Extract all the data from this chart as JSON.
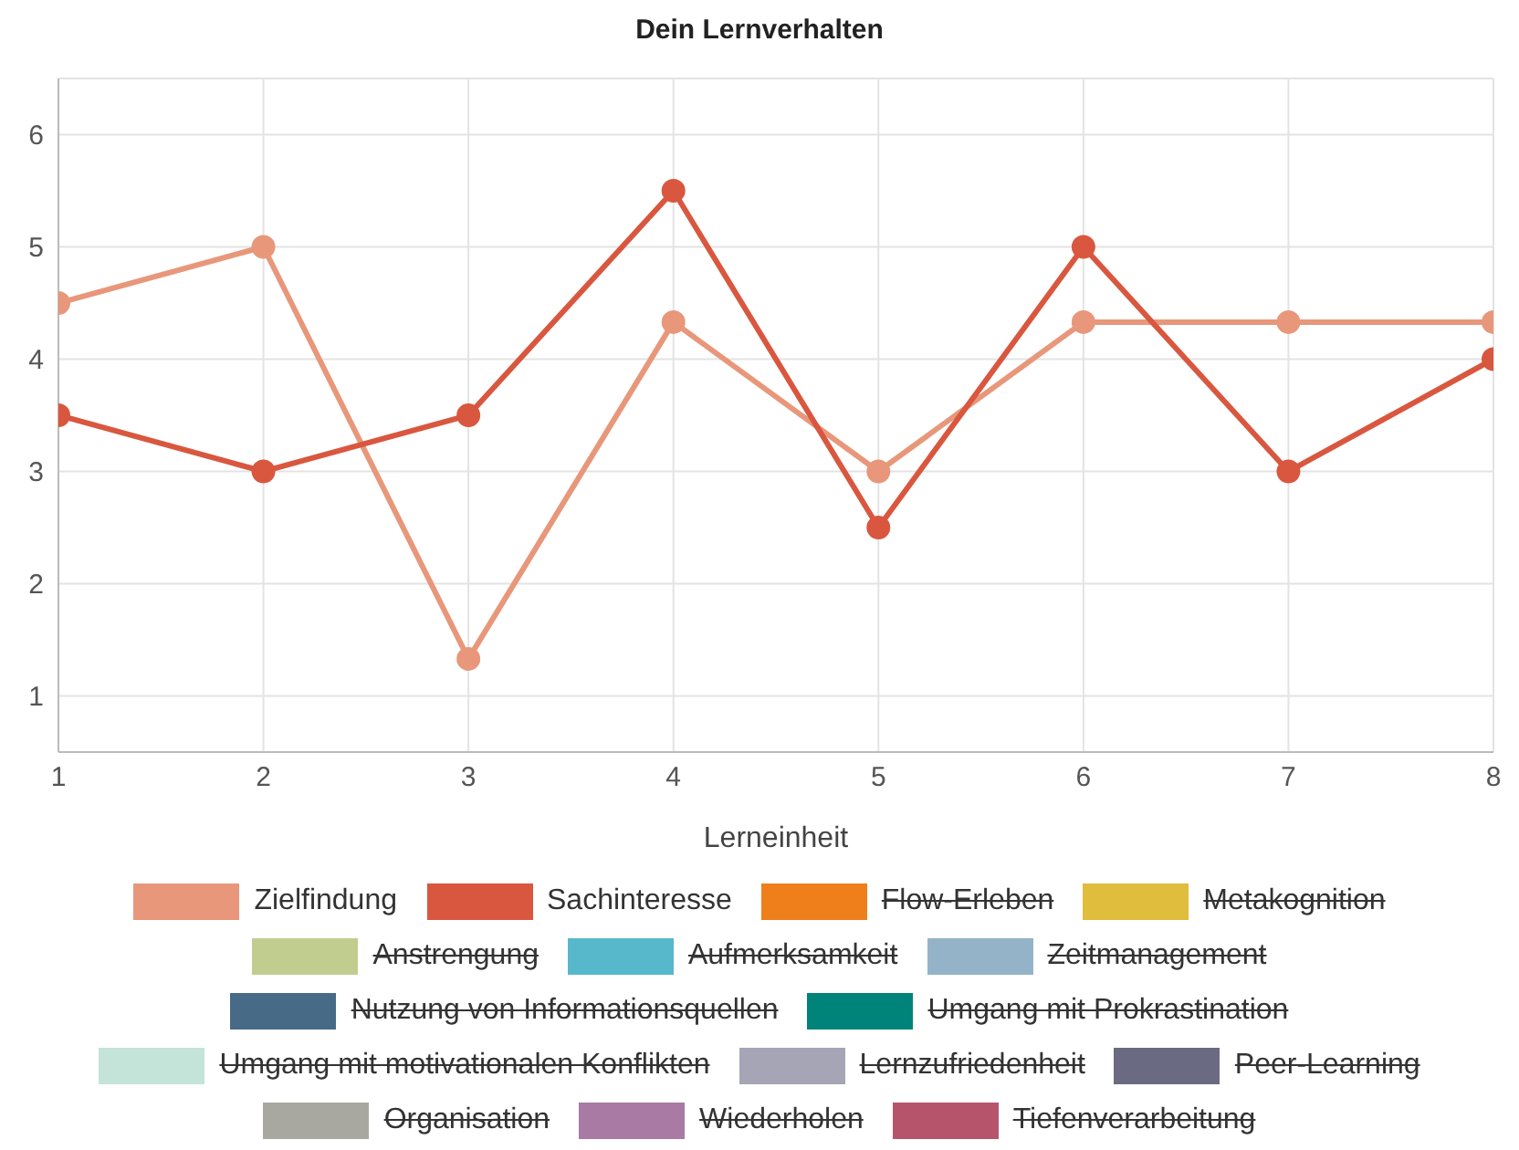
{
  "chart_data": {
    "type": "line",
    "title": "Dein Lernverhalten",
    "xlabel": "Lerneinheit",
    "x": [
      1,
      2,
      3,
      4,
      5,
      6,
      7,
      8
    ],
    "xlim": [
      1,
      8
    ],
    "xticks": [
      1,
      2,
      3,
      4,
      5,
      6,
      7,
      8
    ],
    "ylim": [
      0.5,
      6.5
    ],
    "yticks": [
      1,
      2,
      3,
      4,
      5,
      6
    ],
    "grid": true,
    "legend": "bottom",
    "marker": "circle",
    "line_style": "solid",
    "series": [
      {
        "name": "Zielfindung",
        "color": "#e8977a",
        "values": [
          4.5,
          5,
          1.33,
          4.33,
          3,
          4.33,
          4.33,
          4.33
        ]
      },
      {
        "name": "Sachinteresse",
        "color": "#d9573f",
        "values": [
          3.5,
          3,
          3.5,
          5.5,
          2.5,
          5,
          3,
          4
        ]
      },
      {
        "name": "Flow-Erleben",
        "color": "#ef7f1a",
        "values": [
          null,
          null,
          null,
          null,
          null,
          null,
          null,
          null
        ]
      },
      {
        "name": "Metakognition",
        "color": "#e0bd3c",
        "values": [
          null,
          null,
          null,
          null,
          null,
          null,
          null,
          null
        ]
      },
      {
        "name": "Anstrengung",
        "color": "#c1cd8f",
        "values": [
          null,
          null,
          null,
          null,
          null,
          null,
          null,
          null
        ]
      },
      {
        "name": "Aufmerksamkeit",
        "color": "#57b8cc",
        "values": [
          null,
          null,
          null,
          null,
          null,
          null,
          null,
          null
        ]
      },
      {
        "name": "Zeitmanagement",
        "color": "#94b3c8",
        "values": [
          null,
          null,
          null,
          null,
          null,
          null,
          null,
          null
        ]
      },
      {
        "name": "Nutzung von Informationsquellen",
        "color": "#476b87",
        "values": [
          null,
          null,
          null,
          null,
          null,
          null,
          null,
          null
        ]
      },
      {
        "name": "Umgang mit Prokrastination",
        "color": "#00847a",
        "values": [
          null,
          null,
          null,
          null,
          null,
          null,
          null,
          null
        ]
      },
      {
        "name": "Umgang mit motivationalen Konflikten",
        "color": "#c4e3d9",
        "values": [
          null,
          null,
          null,
          null,
          null,
          null,
          null,
          null
        ]
      },
      {
        "name": "Lernzufriedenheit",
        "color": "#a5a5b5",
        "values": [
          null,
          null,
          null,
          null,
          null,
          null,
          null,
          null
        ]
      },
      {
        "name": "Peer-Learning",
        "color": "#6b6a83",
        "values": [
          null,
          null,
          null,
          null,
          null,
          null,
          null,
          null
        ]
      },
      {
        "name": "Organisation",
        "color": "#a8a8a0",
        "values": [
          null,
          null,
          null,
          null,
          null,
          null,
          null,
          null
        ]
      },
      {
        "name": "Wiederholen",
        "color": "#a97aa3",
        "values": [
          null,
          null,
          null,
          null,
          null,
          null,
          null,
          null
        ]
      },
      {
        "name": "Tiefenverarbeitung",
        "color": "#b5546b",
        "values": [
          null,
          null,
          null,
          null,
          null,
          null,
          null,
          null
        ]
      }
    ]
  }
}
